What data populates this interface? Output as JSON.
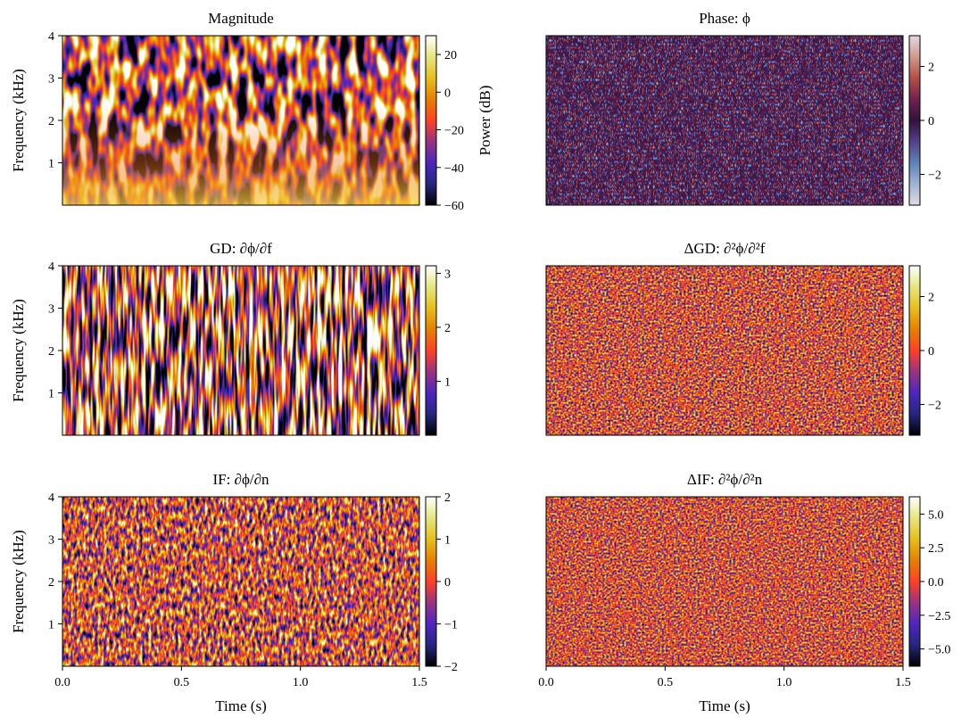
{
  "chart_data": [
    {
      "type": "heatmap",
      "cmap": "CMRmap",
      "title": "Magnitude",
      "ylabel": "Frequency (kHz)",
      "xlim": [
        0,
        1.5
      ],
      "ylim": [
        0,
        4
      ],
      "yticks": [
        1,
        2,
        3,
        4
      ],
      "colorbar": {
        "label": "Power (dB)",
        "lim": [
          -60,
          30
        ],
        "ticks": [
          20,
          0,
          {
            "value": -20,
            "label": "−20"
          },
          {
            "value": -40,
            "label": "−40"
          },
          {
            "value": -60,
            "label": "−60"
          }
        ]
      }
    },
    {
      "type": "heatmap",
      "cmap": "twilight",
      "title": "Phase: ϕ",
      "xlim": [
        0,
        1.5
      ],
      "ylim": [
        0,
        4
      ],
      "colorbar": {
        "lim": [
          -3.14,
          3.14
        ],
        "ticks": [
          2,
          0,
          {
            "value": -2,
            "label": "−2"
          }
        ]
      }
    },
    {
      "type": "heatmap",
      "cmap": "CMRmap",
      "title": "GD: ∂ϕ/∂f",
      "ylabel": "Frequency (kHz)",
      "xlim": [
        0,
        1.5
      ],
      "ylim": [
        0,
        4
      ],
      "yticks": [
        1,
        2,
        3,
        4
      ],
      "colorbar": {
        "lim": [
          0,
          3.14
        ],
        "ticks": [
          3,
          2,
          1
        ]
      }
    },
    {
      "type": "heatmap",
      "cmap": "CMRmap",
      "title": "ΔGD: ∂²ϕ/∂²f",
      "xlim": [
        0,
        1.5
      ],
      "ylim": [
        0,
        4
      ],
      "colorbar": {
        "lim": [
          -3.14,
          3.14
        ],
        "ticks": [
          2,
          0,
          {
            "value": -2,
            "label": "−2"
          }
        ]
      }
    },
    {
      "type": "heatmap",
      "cmap": "CMRmap",
      "title": "IF: ∂ϕ/∂n",
      "ylabel": "Frequency (kHz)",
      "xlabel": "Time (s)",
      "xlim": [
        0,
        1.5
      ],
      "xticks": [
        {
          "value": 0,
          "label": "0.0"
        },
        0.5,
        {
          "value": 1,
          "label": "1.0"
        },
        1.5
      ],
      "ylim": [
        0,
        4
      ],
      "yticks": [
        1,
        2,
        3,
        4
      ],
      "colorbar": {
        "lim": [
          -2,
          2
        ],
        "ticks": [
          2,
          1,
          0,
          {
            "value": -1,
            "label": "−1"
          },
          {
            "value": -2,
            "label": "−2"
          }
        ]
      }
    },
    {
      "type": "heatmap",
      "cmap": "CMRmap",
      "title": "ΔIF: ∂²ϕ/∂²n",
      "xlabel": "Time (s)",
      "xlim": [
        0,
        1.5
      ],
      "xticks": [
        {
          "value": 0,
          "label": "0.0"
        },
        0.5,
        {
          "value": 1,
          "label": "1.0"
        },
        1.5
      ],
      "ylim": [
        0,
        4
      ],
      "colorbar": {
        "lim": [
          -6.28,
          6.28
        ],
        "ticks": [
          {
            "value": 5,
            "label": "5.0"
          },
          2.5,
          {
            "value": 0,
            "label": "0.0"
          },
          {
            "value": -2.5,
            "label": "−2.5"
          },
          {
            "value": -5,
            "label": "−5.0"
          }
        ]
      }
    }
  ]
}
